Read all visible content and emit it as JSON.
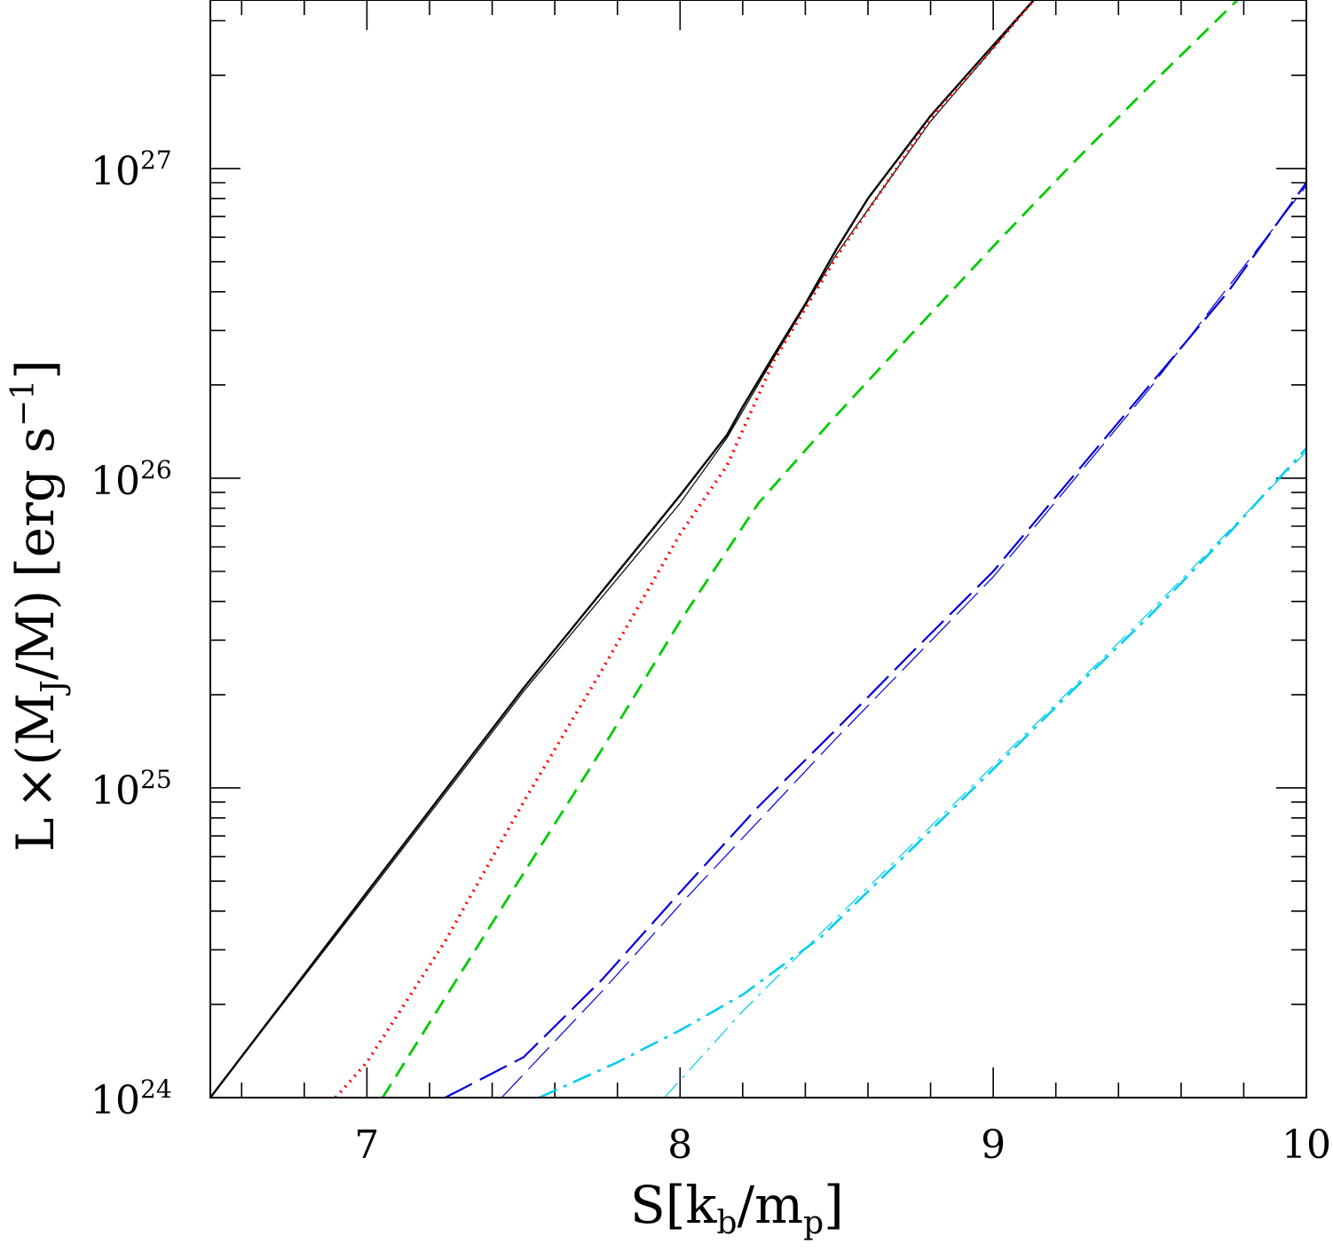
{
  "chart_data": {
    "type": "line",
    "title": "",
    "xlabel": "S[k_b/m_p]",
    "ylabel": "L × (M_J/M) [erg s^-1]",
    "xlim": [
      6.5,
      10
    ],
    "ylim": [
      1e+24,
      3.5e+27
    ],
    "yscale": "log",
    "x_ticks": [
      7,
      8,
      9,
      10
    ],
    "x_tick_labels": [
      "7",
      "8",
      "9",
      "10"
    ],
    "y_ticks": [
      1e+24,
      1e+25,
      1e+26,
      1e+27
    ],
    "y_tick_labels": [
      {
        "base": "10",
        "exp": "24"
      },
      {
        "base": "10",
        "exp": "25"
      },
      {
        "base": "10",
        "exp": "26"
      },
      {
        "base": "10",
        "exp": "27"
      }
    ],
    "x_label_parts": {
      "S": "S",
      "lb": "[",
      "k": "k",
      "k_sub": "b",
      "slash": "/",
      "m": "m",
      "m_sub": "p",
      "rb": "]"
    },
    "y_label_parts": {
      "L": "L",
      "times": "×",
      "op": "(",
      "M": "M",
      "M_sub": "J",
      "slash": "/M",
      "cp": ")",
      "unit": "[erg s",
      "unit_sup": "−1",
      "close": "]"
    },
    "series": [
      {
        "name": "total",
        "color": "#000000",
        "dash": "",
        "width": 2.4,
        "x": [
          6.5,
          7.0,
          7.5,
          8.0,
          8.15,
          8.2,
          8.3,
          8.4,
          8.5,
          8.6,
          8.8,
          9.0,
          9.13
        ],
        "y": [
          1e+24,
          4.6e+24,
          2.1e+25,
          8.8e+25,
          1.38e+26,
          1.7e+26,
          2.5e+26,
          3.65e+26,
          5.5e+26,
          8e+26,
          1.48e+27,
          2.5e+27,
          3.5e+27
        ]
      },
      {
        "name": "total-2",
        "color": "#000000",
        "dash": "",
        "width": 1.2,
        "x": [
          6.5,
          7.0,
          7.5,
          8.0,
          8.15,
          8.3,
          8.5,
          8.8,
          9.0,
          9.13
        ],
        "y": [
          1e+24,
          4.5e+24,
          2.05e+25,
          8.3e+25,
          1.35e+26,
          2.45e+26,
          5.3e+26,
          1.42e+27,
          2.45e+27,
          3.5e+27
        ]
      },
      {
        "name": "component-red",
        "color": "#ff0000",
        "dash": "2,6",
        "width": 3.6,
        "x": [
          6.9,
          7.0,
          7.25,
          7.5,
          7.75,
          8.0,
          8.15,
          8.3,
          8.5,
          8.8,
          9.0,
          9.13
        ],
        "y": [
          1e+24,
          1.3e+24,
          3.2e+24,
          9e+24,
          2.4e+25,
          6.6e+25,
          1.1e+26,
          2.4e+26,
          5.2e+26,
          1.45e+27,
          2.45e+27,
          3.5e+27
        ]
      },
      {
        "name": "component-green",
        "color": "#00cc00",
        "dash": "18,10",
        "width": 2.8,
        "x": [
          7.05,
          7.25,
          7.5,
          7.75,
          8.0,
          8.25,
          8.5,
          8.75,
          9.0,
          9.25,
          9.5,
          9.78
        ],
        "y": [
          1e+24,
          2.1e+24,
          5.3e+24,
          1.33e+25,
          3.45e+25,
          8.3e+25,
          1.6e+26,
          3e+26,
          5.6e+26,
          1.03e+27,
          1.85e+27,
          3.5e+27
        ]
      },
      {
        "name": "component-blue",
        "color": "#0000dd",
        "dash": "34,10",
        "width": 2.2,
        "x": [
          7.25,
          7.5,
          7.75,
          8.0,
          8.25,
          8.5,
          8.75,
          9.0,
          9.25,
          9.5,
          9.75,
          10.0
        ],
        "y": [
          1e+24,
          1.35e+24,
          2.4e+24,
          4.6e+24,
          8.7e+24,
          1.55e+25,
          2.8e+25,
          5e+25,
          1e+26,
          2e+26,
          4e+26,
          9e+26
        ]
      },
      {
        "name": "component-blue-2",
        "color": "#0000dd",
        "dash": "34,10",
        "width": 1.2,
        "x": [
          7.43,
          7.75,
          8.0,
          8.5,
          9.0,
          9.5,
          10.0
        ],
        "y": [
          1e+24,
          2.2e+24,
          4.2e+24,
          1.45e+25,
          4.8e+25,
          1.95e+26,
          8.8e+26
        ]
      },
      {
        "name": "component-cyan",
        "color": "#00ccee",
        "dash": "22,8,4,8",
        "width": 2.6,
        "x": [
          7.55,
          7.8,
          8.0,
          8.2,
          8.45,
          8.75,
          9.0,
          9.25,
          9.5,
          9.75,
          10.0
        ],
        "y": [
          1e+24,
          1.3e+24,
          1.65e+24,
          2.15e+24,
          3.3e+24,
          6.5e+24,
          1.15e+25,
          2.05e+25,
          3.6e+25,
          6.6e+25,
          1.25e+26
        ]
      },
      {
        "name": "component-cyan-2",
        "color": "#00ccee",
        "dash": "22,8,4,8",
        "width": 1.2,
        "x": [
          7.95,
          8.2,
          8.45,
          8.75,
          9.0,
          9.5,
          10.0
        ],
        "y": [
          1e+24,
          1.9e+24,
          3.4e+24,
          6.7e+24,
          1.18e+25,
          3.7e+25,
          1.22e+26
        ]
      }
    ]
  }
}
